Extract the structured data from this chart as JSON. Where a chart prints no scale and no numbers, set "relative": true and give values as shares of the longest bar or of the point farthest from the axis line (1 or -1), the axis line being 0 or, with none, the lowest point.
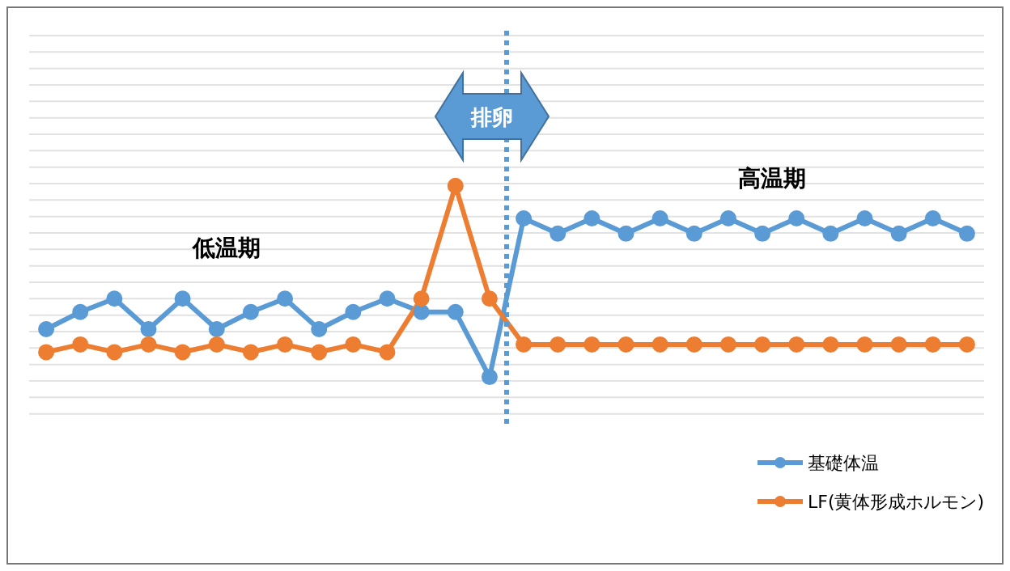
{
  "chart_data": {
    "type": "line",
    "relative": true,
    "categories": [
      null,
      null,
      null,
      null,
      null,
      null,
      null,
      null,
      null,
      null,
      null,
      null,
      null,
      null,
      null,
      null,
      null,
      null,
      null,
      null,
      null,
      null,
      null,
      null,
      null,
      null,
      null,
      null
    ],
    "series": [
      {
        "name": "基礎体温",
        "color": "#5b9bd5",
        "values": [
          0.25,
          0.34,
          0.41,
          0.25,
          0.41,
          0.25,
          0.34,
          0.41,
          0.25,
          0.34,
          0.41,
          0.34,
          0.34,
          0,
          0.83,
          0.75,
          0.83,
          0.75,
          0.83,
          0.75,
          0.83,
          0.75,
          0.83,
          0.75,
          0.83,
          0.75,
          0.83,
          0.75
        ]
      },
      {
        "name": "LF(黄体形成ホルモン)",
        "color": "#ed7d31",
        "values": [
          0.13,
          0.17,
          0.13,
          0.17,
          0.13,
          0.17,
          0.13,
          0.17,
          0.13,
          0.17,
          0.13,
          0.41,
          1,
          0.41,
          0.17,
          0.17,
          0.17,
          0.17,
          0.17,
          0.17,
          0.17,
          0.17,
          0.17,
          0.17,
          0.17,
          0.17,
          0.17,
          0.17
        ]
      }
    ],
    "annotations": [
      "排卵",
      "低温期",
      "高温期"
    ],
    "grid": "y",
    "legend": "bottom right",
    "marker": "circle",
    "line_style": "solid"
  }
}
